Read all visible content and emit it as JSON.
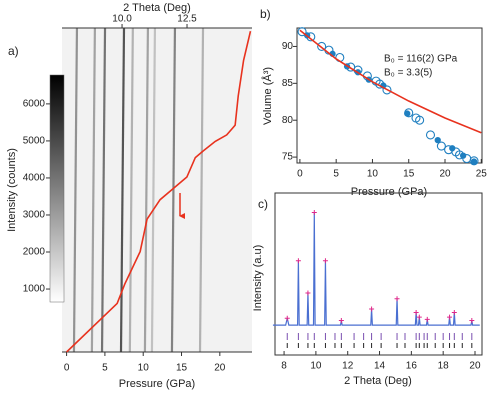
{
  "chart_data": [
    {
      "type": "heatmap",
      "panel_label": "a)",
      "x_label": "Pressure (GPa)",
      "x2_label": "2 Theta (Deg)",
      "colorbar_label": "Intensity (counts)",
      "xlim": [
        -0.6,
        24.2
      ],
      "xticks": [
        0,
        5,
        10,
        15,
        20
      ],
      "x2lim": [
        7.69,
        15.0
      ],
      "x2ticks": [
        {
          "value": 10,
          "label": "10.0"
        },
        {
          "value": 12.5,
          "label": "12.5"
        }
      ],
      "clim": [
        650,
        6780
      ],
      "cticks": [
        1000,
        2000,
        3000,
        4000,
        5000,
        6000
      ],
      "ylim": [
        0,
        1
      ],
      "streaks": {
        "x": [
          8.15,
          8.84,
          9.23,
          9.96,
          10.3,
          10.88,
          11.15,
          11.92,
          13.0
        ],
        "values": [
          3500,
          3000,
          4500,
          5500,
          2500,
          3000,
          2000,
          4000,
          2500
        ]
      },
      "series": [
        {
          "color": "#e8321e",
          "x": [
            0,
            6.6,
            7.6,
            9.6,
            10.5,
            12.2,
            14.2,
            15.7,
            16.8,
            17.8,
            19.4,
            20.9,
            22.0,
            22.4,
            23.1,
            24.0
          ],
          "values": [
            0,
            0.15,
            0.21,
            0.31,
            0.41,
            0.47,
            0.51,
            0.54,
            0.6,
            0.62,
            0.65,
            0.67,
            0.7,
            0.79,
            0.9,
            0.99
          ]
        }
      ]
    },
    {
      "type": "scatter",
      "panel_label": "b)",
      "x_label": "Pressure (GPa)",
      "y_label": "Volume (Å³)",
      "xlim": [
        -0.4,
        25.1
      ],
      "xticks": [
        0,
        5,
        10,
        15,
        20,
        25
      ],
      "ylim": [
        74.2,
        92.5
      ],
      "yticks": [
        75,
        80,
        85,
        90
      ],
      "annotations": [
        "B₀ = 116(2) GPa",
        "B₀ = 3.3(5)"
      ],
      "series": [
        {
          "style": "open",
          "color": "#1f7fc0",
          "x": [
            0.3,
            1.5,
            3,
            4,
            5.5,
            7,
            8,
            9.3,
            10.5,
            11,
            12,
            15,
            16,
            16.5,
            18,
            19.5,
            20.5,
            21.5,
            22,
            23,
            24
          ],
          "values": [
            92,
            91.3,
            90,
            89.5,
            88.5,
            87.2,
            86.8,
            86,
            85.3,
            84.9,
            84.1,
            81,
            80.3,
            80,
            78,
            76.5,
            76,
            75.7,
            75.3,
            74.8,
            74.5
          ]
        },
        {
          "style": "filled",
          "color": "#1f7fc0",
          "x": [
            1,
            4.5,
            6.5,
            8,
            9.5,
            11.5,
            14.8,
            19,
            21,
            22.5,
            24
          ],
          "values": [
            91.5,
            89,
            87.3,
            86.5,
            85.5,
            84.7,
            80.9,
            77.3,
            76.2,
            75.2,
            74.4
          ]
        },
        {
          "style": "line",
          "color": "#e8321e",
          "x": [
            0,
            5,
            10,
            15,
            20,
            25
          ],
          "values": [
            92.2,
            88.3,
            85.2,
            82.6,
            80.3,
            78.3
          ]
        }
      ]
    },
    {
      "type": "line",
      "panel_label": "c)",
      "x_label": "2 Theta (Deg)",
      "y_label": "Intensity (a.u)",
      "xlim": [
        7.43,
        20.44
      ],
      "xticks": [
        8,
        10,
        12,
        14,
        16,
        18,
        20
      ],
      "ylim": [
        -0.24,
        1.17
      ],
      "reflections": [
        8.2,
        8.9,
        9.5,
        9.9,
        10.6,
        11.2,
        11.6,
        12.4,
        13.0,
        13.5,
        14.1,
        15.1,
        15.6,
        16.3,
        16.5,
        16.8,
        17.0,
        17.5,
        18.0,
        18.4,
        18.7,
        19.2,
        19.8
      ],
      "series": [
        {
          "style": "line",
          "color": "#4a6fd1",
          "x": [
            7.3,
            8.1,
            8.2,
            8.3,
            8.85,
            8.9,
            8.95,
            9.45,
            9.5,
            9.55,
            9.85,
            9.9,
            9.95,
            10.55,
            10.6,
            10.65,
            11.55,
            11.6,
            11.65,
            13.45,
            13.5,
            13.55,
            15.05,
            15.1,
            15.15,
            16.25,
            16.3,
            16.35,
            16.45,
            16.5,
            16.55,
            16.95,
            17.0,
            17.05,
            18.35,
            18.4,
            18.45,
            18.65,
            18.7,
            18.75,
            19.75,
            19.8,
            19.85,
            20.3
          ],
          "values": [
            0.02,
            0.02,
            0.08,
            0.02,
            0.02,
            0.58,
            0.02,
            0.02,
            0.3,
            0.02,
            0.02,
            1.0,
            0.02,
            0.02,
            0.58,
            0.02,
            0.02,
            0.06,
            0.02,
            0.02,
            0.16,
            0.02,
            0.02,
            0.25,
            0.02,
            0.02,
            0.13,
            0.02,
            0.02,
            0.09,
            0.02,
            0.02,
            0.07,
            0.02,
            0.02,
            0.09,
            0.02,
            0.02,
            0.13,
            0.02,
            0.02,
            0.06,
            0.02,
            0.02
          ]
        },
        {
          "style": "cross",
          "color": "#e0288a",
          "x": [
            8.2,
            8.9,
            9.5,
            9.9,
            10.6,
            11.6,
            13.5,
            15.1,
            16.3,
            16.5,
            17.0,
            18.4,
            18.7,
            19.8
          ],
          "values": [
            0.08,
            0.58,
            0.3,
            1.0,
            0.58,
            0.06,
            0.16,
            0.25,
            0.13,
            0.09,
            0.07,
            0.09,
            0.13,
            0.06
          ]
        }
      ]
    }
  ]
}
